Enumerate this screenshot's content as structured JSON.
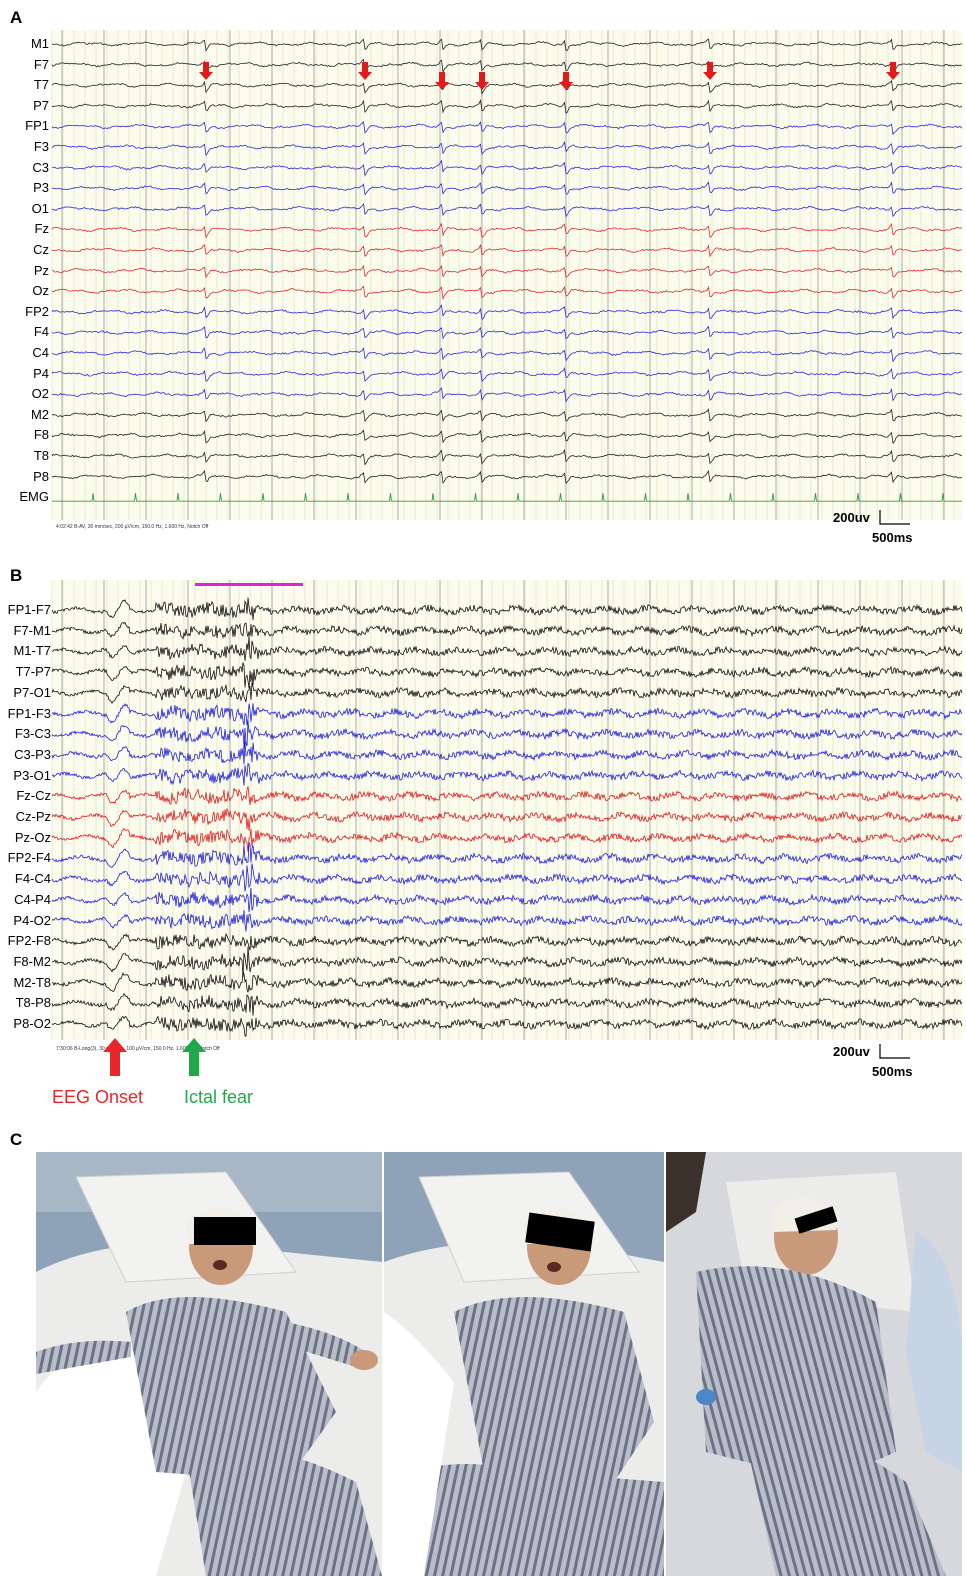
{
  "panels": {
    "a": {
      "letter": "A",
      "channels": [
        {
          "label": "M1",
          "color": "#222222"
        },
        {
          "label": "F7",
          "color": "#222222"
        },
        {
          "label": "T7",
          "color": "#222222"
        },
        {
          "label": "P7",
          "color": "#222222"
        },
        {
          "label": "FP1",
          "color": "#2b2bd8"
        },
        {
          "label": "F3",
          "color": "#2b2bd8"
        },
        {
          "label": "C3",
          "color": "#2b2bd8"
        },
        {
          "label": "P3",
          "color": "#2b2bd8"
        },
        {
          "label": "O1",
          "color": "#2b2bd8"
        },
        {
          "label": "Fz",
          "color": "#e02a2a"
        },
        {
          "label": "Cz",
          "color": "#e02a2a"
        },
        {
          "label": "Pz",
          "color": "#e02a2a"
        },
        {
          "label": "Oz",
          "color": "#e02a2a"
        },
        {
          "label": "FP2",
          "color": "#2b2bd8"
        },
        {
          "label": "F4",
          "color": "#2b2bd8"
        },
        {
          "label": "C4",
          "color": "#2b2bd8"
        },
        {
          "label": "P4",
          "color": "#2b2bd8"
        },
        {
          "label": "O2",
          "color": "#2b2bd8"
        },
        {
          "label": "M2",
          "color": "#222222"
        },
        {
          "label": "F8",
          "color": "#222222"
        },
        {
          "label": "T8",
          "color": "#222222"
        },
        {
          "label": "P8",
          "color": "#222222"
        },
        {
          "label": "EMG",
          "color": "#2f9e3f"
        }
      ],
      "scale_amplitude": "200uv",
      "scale_time": "500ms",
      "footer": "4:02:42 B-AV, 30 mm/sec, 200 µV/cm, 150.0 Hz, 1.600 Hz, Notch Off"
    },
    "b": {
      "letter": "B",
      "channels": [
        {
          "label": "FP1-F7",
          "color": "#111111"
        },
        {
          "label": "F7-M1",
          "color": "#111111"
        },
        {
          "label": "M1-T7",
          "color": "#111111"
        },
        {
          "label": "T7-P7",
          "color": "#111111"
        },
        {
          "label": "P7-O1",
          "color": "#111111"
        },
        {
          "label": "FP1-F3",
          "color": "#1f1fe0"
        },
        {
          "label": "F3-C3",
          "color": "#1f1fe0"
        },
        {
          "label": "C3-P3",
          "color": "#1f1fe0"
        },
        {
          "label": "P3-O1",
          "color": "#1f1fe0"
        },
        {
          "label": "Fz-Cz",
          "color": "#e21c1c"
        },
        {
          "label": "Cz-Pz",
          "color": "#e21c1c"
        },
        {
          "label": "Pz-Oz",
          "color": "#e21c1c"
        },
        {
          "label": "FP2-F4",
          "color": "#1f1fe0"
        },
        {
          "label": "F4-C4",
          "color": "#1f1fe0"
        },
        {
          "label": "C4-P4",
          "color": "#1f1fe0"
        },
        {
          "label": "P4-O2",
          "color": "#1f1fe0"
        },
        {
          "label": "FP2-F8",
          "color": "#111111"
        },
        {
          "label": "F8-M2",
          "color": "#111111"
        },
        {
          "label": "M2-T8",
          "color": "#111111"
        },
        {
          "label": "T8-P8",
          "color": "#111111"
        },
        {
          "label": "P8-O2",
          "color": "#111111"
        }
      ],
      "scale_amplitude": "200uv",
      "scale_time": "500ms",
      "footer": "7:30:06 B-Long(3), 30 mm/sec, 100 µV/cm, 150.0 Hz, 1.600 Hz, Notch Off",
      "eeg_onset_label": "EEG Onset",
      "ictal_fear_label": "Ictal fear",
      "colors": {
        "onset": "#e8262a",
        "fear": "#1ea84a",
        "marker": "#e020e0"
      }
    },
    "c": {
      "letter": "C",
      "photos": [
        "frame-1",
        "frame-2",
        "frame-3"
      ]
    }
  }
}
